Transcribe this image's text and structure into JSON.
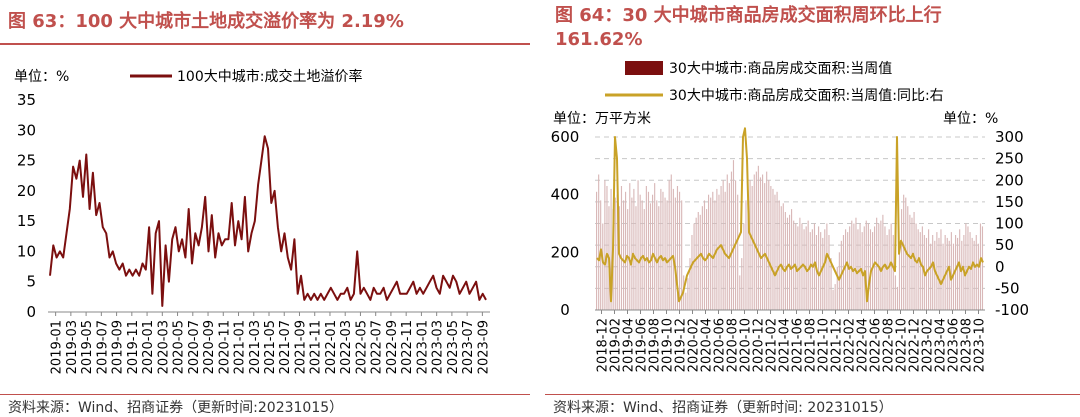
{
  "left": {
    "title": "图 63：100 大中城市土地成交溢价率为 2.19%",
    "source": "资料来源：Wind、招商证券（更新时间:20231015）",
    "unit_label": "单位：%",
    "legend_label": "100大中城市:成交土地溢价率",
    "colors": {
      "line": "#7b0f0f",
      "title": "#c0504d"
    }
  },
  "right": {
    "title_line1": "图 64：30 大中城市商品房成交面积周环比上行",
    "title_line2": "161.62%",
    "source": "资料来源：Wind、招商证券（更新时间: 20231015）",
    "unit_left": "单位：万平方米",
    "unit_right": "单位：%",
    "legend_bar": "30大中城市:商品房成交面积:当周值",
    "legend_line": "30大中城市:商品房成交面积:当周值:同比:右",
    "colors": {
      "bar": "#7b0f0f",
      "line": "#c9a227"
    }
  },
  "chart_data": [
    {
      "type": "line",
      "title": "100 大中城市土地成交溢价率为 2.19%",
      "ylabel": "单位：%",
      "ylim": [
        0,
        35
      ],
      "yticks": [
        0,
        5,
        10,
        15,
        20,
        25,
        30,
        35
      ],
      "xtick_labels": [
        "2019-01",
        "2019-03",
        "2019-05",
        "2019-07",
        "2019-09",
        "2019-11",
        "2020-01",
        "2020-03",
        "2020-05",
        "2020-07",
        "2020-09",
        "2020-11",
        "2021-01",
        "2021-03",
        "2021-05",
        "2021-07",
        "2021-09",
        "2021-11",
        "2022-01",
        "2022-03",
        "2022-05",
        "2022-07",
        "2022-09",
        "2022-11",
        "2023-01",
        "2023-03",
        "2023-05",
        "2023-07",
        "2023-09"
      ],
      "grid": false,
      "legend_position": "top",
      "series": [
        {
          "name": "100大中城市:成交土地溢价率",
          "x_start": "2019-01",
          "x_end": "2023-10",
          "values": [
            6,
            11,
            9,
            10,
            9,
            13,
            17,
            24,
            22,
            25,
            19,
            26,
            17,
            23,
            16,
            18,
            14,
            13,
            9,
            10,
            8,
            7,
            8,
            6,
            7,
            6,
            7,
            6,
            8,
            7,
            14,
            3,
            13,
            15,
            1,
            11,
            5,
            12,
            14,
            10,
            12,
            9,
            17,
            8,
            13,
            11,
            14,
            19,
            10,
            16,
            9,
            13,
            11,
            12,
            12,
            18,
            11,
            15,
            12,
            19,
            10,
            13,
            15,
            21,
            25,
            29,
            27,
            18,
            20,
            14,
            10,
            13,
            9,
            7,
            12,
            3,
            6,
            2,
            3,
            2,
            3,
            2,
            3,
            2,
            3,
            4,
            3,
            2,
            3,
            3,
            4,
            2,
            3,
            10,
            3,
            4,
            3,
            2,
            4,
            3,
            3,
            4,
            2,
            3,
            4,
            5,
            3,
            3,
            3,
            4,
            5,
            3,
            4,
            3,
            4,
            5,
            6,
            4,
            3,
            6,
            5,
            4,
            6,
            5,
            3,
            4,
            5,
            3,
            4,
            5,
            2,
            3,
            2
          ]
        }
      ]
    },
    {
      "type": "bar",
      "title": "30 大中城市商品房成交面积周环比上行 161.62%",
      "ylabel": "单位：万平方米",
      "ylim": [
        0,
        600
      ],
      "yticks": [
        0,
        200,
        400,
        600
      ],
      "y2label": "单位：%",
      "y2lim": [
        -100,
        300
      ],
      "y2ticks": [
        -100,
        -50,
        0,
        50,
        100,
        150,
        200,
        250,
        300
      ],
      "xtick_labels": [
        "2018-12",
        "2019-02",
        "2019-04",
        "2019-06",
        "2019-08",
        "2019-10",
        "2019-12",
        "2020-02",
        "2020-04",
        "2020-06",
        "2020-08",
        "2020-10",
        "2020-12",
        "2021-02",
        "2021-04",
        "2021-06",
        "2021-08",
        "2021-10",
        "2021-12",
        "2022-02",
        "2022-04",
        "2022-06",
        "2022-08",
        "2022-10",
        "2022-12",
        "2023-02",
        "2023-04",
        "2023-06",
        "2023-08",
        "2023-10"
      ],
      "grid": true,
      "legend_position": "top",
      "series": [
        {
          "name": "30大中城市:商品房成交面积:当周值",
          "type": "bar",
          "axis": "left",
          "x_start": "2018-12",
          "x_end": "2023-10",
          "values": [
            410,
            470,
            380,
            300,
            450,
            430,
            360,
            420,
            350,
            390,
            400,
            360,
            430,
            380,
            410,
            350,
            440,
            390,
            420,
            360,
            450,
            400,
            380,
            350,
            430,
            410,
            370,
            400,
            440,
            380,
            360,
            420,
            410,
            390,
            380,
            450,
            470,
            420,
            390,
            430,
            410,
            380,
            120,
            60,
            110,
            180,
            260,
            300,
            320,
            340,
            330,
            360,
            380,
            350,
            400,
            390,
            410,
            380,
            420,
            400,
            430,
            450,
            410,
            470,
            440,
            480,
            520,
            450,
            400,
            120,
            180,
            300,
            380,
            400,
            450,
            430,
            470,
            480,
            500,
            460,
            470,
            440,
            480,
            450,
            430,
            420,
            400,
            410,
            380,
            360,
            370,
            340,
            320,
            330,
            350,
            310,
            300,
            290,
            320,
            300,
            280,
            290,
            310,
            270,
            280,
            300,
            260,
            290,
            270,
            250,
            280,
            300,
            260,
            180,
            70,
            90,
            150,
            200,
            240,
            260,
            280,
            270,
            290,
            310,
            300,
            320,
            280,
            300,
            270,
            290,
            310,
            300,
            280,
            270,
            290,
            320,
            300,
            310,
            330,
            290,
            260,
            280,
            300,
            260,
            120,
            80,
            200,
            350,
            400,
            390,
            360,
            330,
            320,
            340,
            300,
            280,
            270,
            290,
            260,
            250,
            280,
            230,
            260,
            240,
            270,
            250,
            280,
            230,
            260,
            250,
            240,
            270,
            230,
            260,
            250,
            280,
            240,
            260,
            300,
            290,
            270,
            250,
            240,
            260,
            230,
            300,
            290
          ]
        },
        {
          "name": "30大中城市:商品房成交面积:当周值:同比:右",
          "type": "line",
          "axis": "right",
          "x_start": "2018-12",
          "x_end": "2023-10",
          "values": [
            20,
            15,
            40,
            10,
            5,
            30,
            20,
            -80,
            40,
            300,
            250,
            30,
            20,
            15,
            10,
            25,
            20,
            5,
            30,
            20,
            15,
            10,
            20,
            25,
            15,
            20,
            10,
            15,
            30,
            20,
            10,
            20,
            25,
            15,
            20,
            10,
            15,
            20,
            25,
            0,
            -40,
            -80,
            -70,
            -60,
            -40,
            -20,
            -10,
            0,
            10,
            15,
            20,
            25,
            30,
            20,
            15,
            20,
            30,
            25,
            20,
            30,
            40,
            45,
            50,
            40,
            30,
            25,
            20,
            30,
            40,
            50,
            60,
            70,
            80,
            300,
            320,
            250,
            80,
            70,
            60,
            50,
            40,
            30,
            20,
            25,
            30,
            20,
            10,
            0,
            -10,
            -20,
            -10,
            0,
            5,
            -5,
            -10,
            0,
            5,
            -5,
            0,
            5,
            -10,
            -5,
            0,
            5,
            0,
            -10,
            -5,
            5,
            0,
            10,
            -10,
            -20,
            -10,
            0,
            10,
            30,
            20,
            10,
            0,
            -10,
            -20,
            -30,
            -20,
            -10,
            0,
            10,
            -5,
            0,
            -10,
            -5,
            -15,
            -10,
            -5,
            -20,
            -10,
            -80,
            -40,
            -10,
            0,
            10,
            5,
            0,
            -10,
            0,
            5,
            -5,
            0,
            10,
            0,
            -10,
            300,
            30,
            60,
            50,
            40,
            30,
            25,
            20,
            30,
            15,
            10,
            20,
            5,
            0,
            -20,
            -10,
            -5,
            0,
            10,
            -10,
            -20,
            -30,
            -40,
            -30,
            -20,
            -10,
            0,
            -30,
            -20,
            -10,
            0,
            10,
            -10,
            0,
            -20,
            -10,
            0,
            -5,
            10,
            0,
            5,
            0,
            20,
            10
          ]
        }
      ]
    }
  ]
}
